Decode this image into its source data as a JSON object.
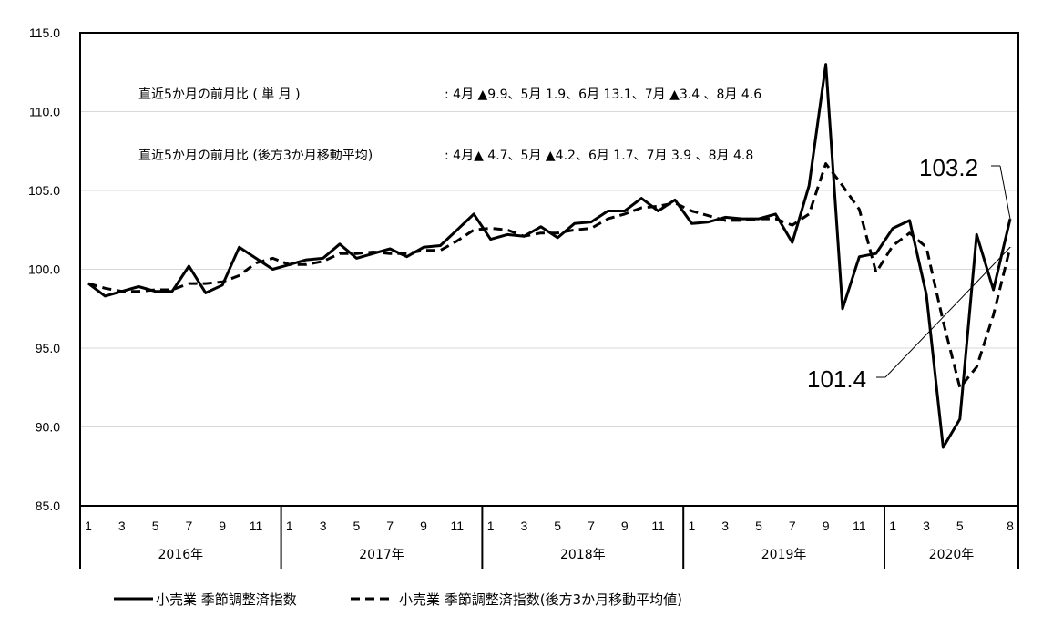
{
  "chart_data": {
    "type": "line",
    "title": "",
    "xlabel": "",
    "ylabel": "",
    "ylim": [
      85.0,
      115.0
    ],
    "y_ticks": [
      "115.0",
      "110.0",
      "105.0",
      "100.0",
      "95.0",
      "90.0",
      "85.0"
    ],
    "grid": true,
    "legend_position": "bottom",
    "x_month_labels": [
      "1",
      "",
      "3",
      "",
      "5",
      "",
      "7",
      "",
      "9",
      "",
      "11",
      "",
      "1",
      "",
      "3",
      "",
      "5",
      "",
      "7",
      "",
      "9",
      "",
      "11",
      "",
      "1",
      "",
      "3",
      "",
      "5",
      "",
      "7",
      "",
      "9",
      "",
      "11",
      "",
      "1",
      "",
      "3",
      "",
      "5",
      "",
      "7",
      "",
      "9",
      "",
      "11",
      "",
      "1",
      "",
      "3",
      "",
      "5",
      "",
      "",
      "8"
    ],
    "years": [
      {
        "label": "2016年",
        "start": 0,
        "end": 12
      },
      {
        "label": "2017年",
        "start": 12,
        "end": 24
      },
      {
        "label": "2018年",
        "start": 24,
        "end": 36
      },
      {
        "label": "2019年",
        "start": 36,
        "end": 48
      },
      {
        "label": "2020年",
        "start": 48,
        "end": 56
      }
    ],
    "series": [
      {
        "name": "小売業 季節調整済指数",
        "style": "solid",
        "values": [
          99.1,
          98.3,
          98.6,
          98.9,
          98.6,
          98.6,
          100.2,
          98.5,
          99.0,
          101.4,
          100.7,
          100.0,
          100.3,
          100.6,
          100.7,
          101.6,
          100.7,
          101.0,
          101.3,
          100.8,
          101.4,
          101.5,
          102.5,
          103.5,
          101.9,
          102.2,
          102.1,
          102.7,
          102.0,
          102.9,
          103.0,
          103.7,
          103.7,
          104.5,
          103.7,
          104.4,
          102.9,
          103.0,
          103.3,
          103.2,
          103.2,
          103.5,
          101.7,
          105.3,
          113.0,
          97.5,
          100.8,
          101.0,
          102.6,
          103.1,
          98.4,
          88.7,
          90.5,
          102.2,
          98.7,
          103.2
        ]
      },
      {
        "name": "小売業 季節調整済指数(後方3か月移動平均値)",
        "style": "dashed",
        "values": [
          99.1,
          98.8,
          98.6,
          98.6,
          98.7,
          98.7,
          99.1,
          99.1,
          99.2,
          99.6,
          100.4,
          100.7,
          100.3,
          100.3,
          100.5,
          101.0,
          101.0,
          101.1,
          101.0,
          101.0,
          101.2,
          101.2,
          101.8,
          102.5,
          102.6,
          102.5,
          102.1,
          102.3,
          102.3,
          102.5,
          102.6,
          103.2,
          103.5,
          103.9,
          104.0,
          104.2,
          103.7,
          103.4,
          103.1,
          103.1,
          103.2,
          103.2,
          102.8,
          103.5,
          106.7,
          105.3,
          103.8,
          99.8,
          101.5,
          102.3,
          101.4,
          96.7,
          92.5,
          93.8,
          97.1,
          101.4
        ]
      }
    ],
    "annotations": [
      {
        "text": "直近5か月の前月比 ( 単 月 )",
        "detail": ": 4月 ▲9.9、5月 1.9、6月 13.1、7月 ▲3.4 、8月 4.6"
      },
      {
        "text": "直近5か月の前月比 (後方3か月移動平均)",
        "detail": ": 4月▲ 4.7、5月 ▲4.2、6月 1.7、7月 3.9 、8月 4.8"
      }
    ],
    "callouts": [
      {
        "text": "103.2",
        "series": 0,
        "index": 55
      },
      {
        "text": "101.4",
        "series": 1,
        "index": 55
      }
    ],
    "colors": {
      "line": "#000000",
      "grid": "#d9d9d9",
      "axis": "#000000"
    }
  }
}
